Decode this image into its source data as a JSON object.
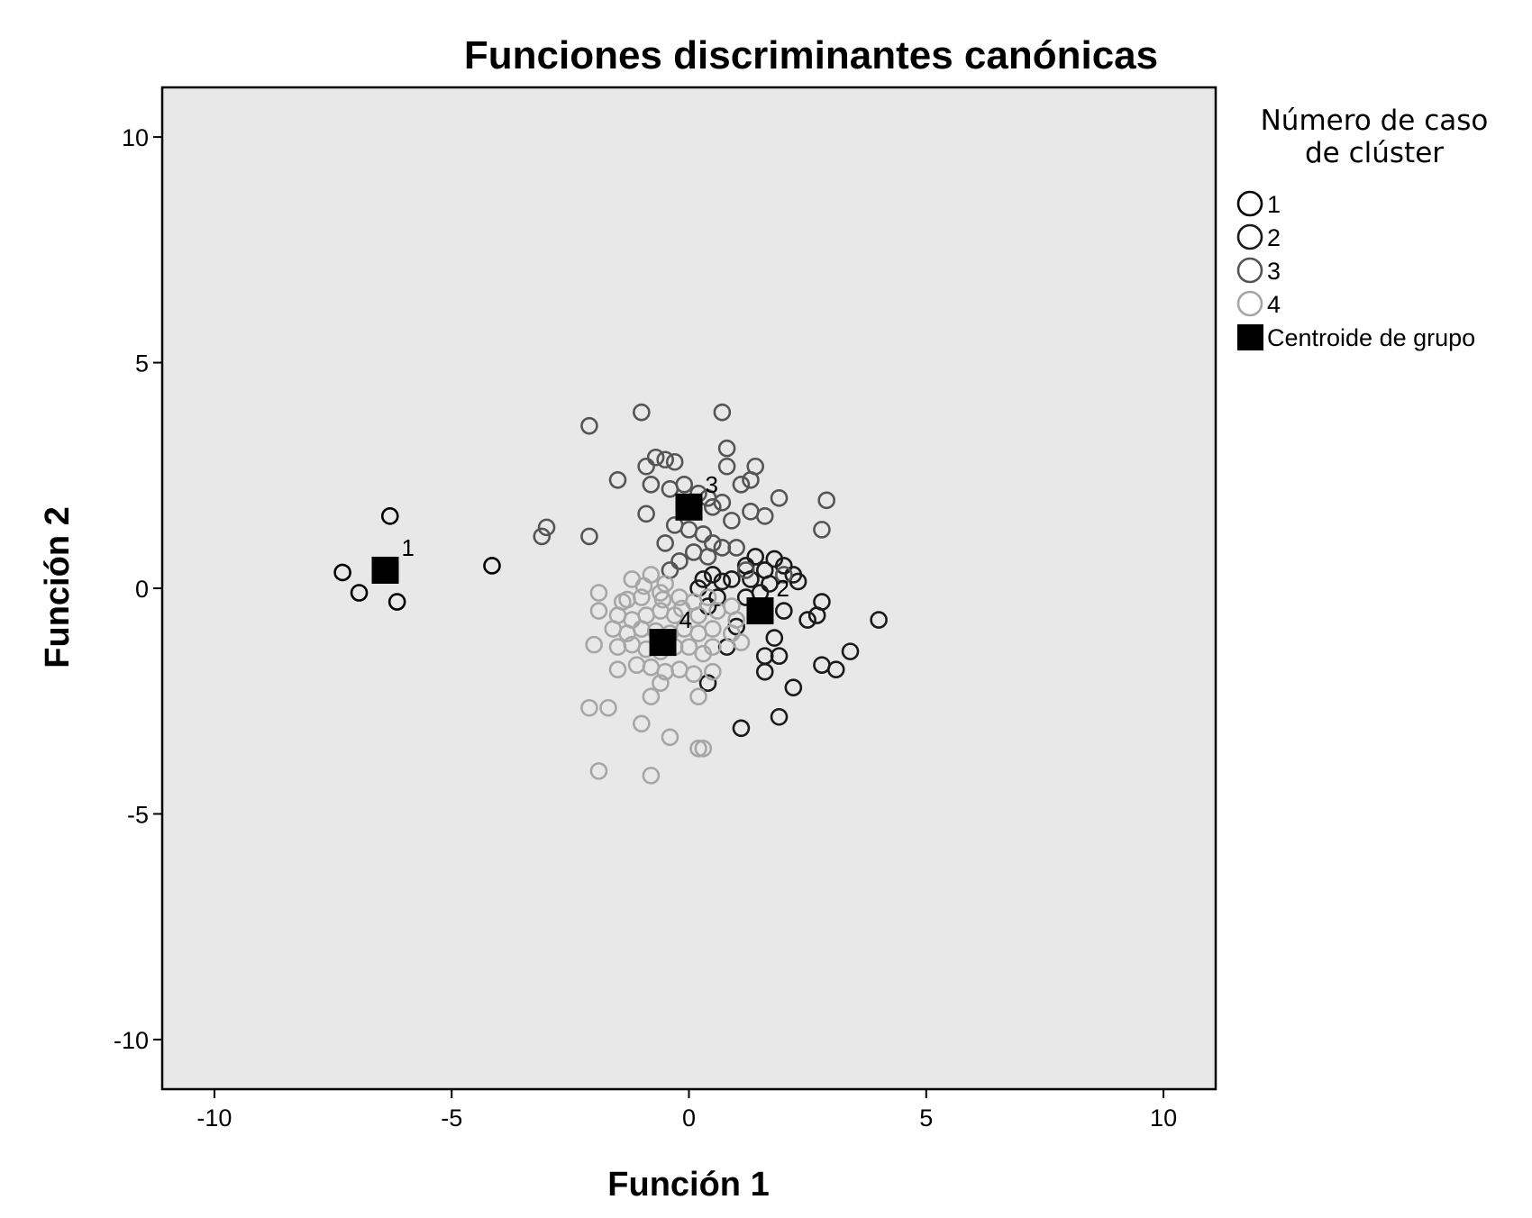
{
  "chart_data": {
    "type": "scatter",
    "title": "Funciones discriminantes canónicas",
    "xlabel": "Función 1",
    "ylabel": "Función 2",
    "xlim": [
      -11.1,
      11.1
    ],
    "ylim": [
      -11.1,
      11.1
    ],
    "x_ticks": [
      -10,
      -5,
      0,
      5,
      10
    ],
    "y_ticks": [
      -10,
      -5,
      0,
      5,
      10
    ],
    "x_tick_labels": [
      "-10",
      "-5",
      "0",
      "5",
      "10"
    ],
    "y_tick_labels": [
      "-10",
      "-5",
      "0",
      "5",
      "10"
    ],
    "grid": false,
    "plot_background": "#e8e8e8",
    "legend": {
      "title_lines": [
        "Número de caso",
        "de clúster"
      ],
      "placement": "right",
      "centroid_label": "Centroide de grupo"
    },
    "series": [
      {
        "name": "1",
        "color": "#000000",
        "points": [
          [
            -6.3,
            1.6
          ],
          [
            -7.3,
            0.35
          ],
          [
            -6.95,
            -0.1
          ],
          [
            -6.15,
            -0.3
          ],
          [
            -4.15,
            0.5
          ]
        ]
      },
      {
        "name": "2",
        "color": "#1a1a1a",
        "points": [
          [
            0.3,
            0.2
          ],
          [
            0.5,
            0.3
          ],
          [
            0.7,
            0.15
          ],
          [
            0.9,
            0.2
          ],
          [
            1.2,
            0.5
          ],
          [
            1.4,
            0.7
          ],
          [
            1.6,
            0.4
          ],
          [
            1.8,
            0.65
          ],
          [
            2.0,
            0.5
          ],
          [
            2.2,
            0.3
          ],
          [
            2.3,
            0.15
          ],
          [
            1.7,
            0.1
          ],
          [
            1.5,
            -0.1
          ],
          [
            0.4,
            -0.4
          ],
          [
            1.2,
            -0.2
          ],
          [
            2.0,
            -0.5
          ],
          [
            2.5,
            -0.7
          ],
          [
            2.7,
            -0.6
          ],
          [
            2.8,
            -0.3
          ],
          [
            4.0,
            -0.7
          ],
          [
            1.0,
            -0.85
          ],
          [
            0.8,
            -1.3
          ],
          [
            1.8,
            -1.1
          ],
          [
            1.6,
            -1.5
          ],
          [
            1.9,
            -1.5
          ],
          [
            3.4,
            -1.4
          ],
          [
            2.8,
            -1.7
          ],
          [
            3.1,
            -1.8
          ],
          [
            1.6,
            -1.85
          ],
          [
            0.4,
            -2.1
          ],
          [
            2.2,
            -2.2
          ],
          [
            1.9,
            -2.85
          ],
          [
            1.1,
            -3.1
          ],
          [
            0.2,
            0.0
          ],
          [
            1.3,
            0.2
          ],
          [
            0.6,
            -0.2
          ]
        ]
      },
      {
        "name": "3",
        "color": "#555555",
        "points": [
          [
            -1.0,
            3.9
          ],
          [
            0.7,
            3.9
          ],
          [
            -2.1,
            3.6
          ],
          [
            0.8,
            3.1
          ],
          [
            -0.7,
            2.9
          ],
          [
            -0.5,
            2.85
          ],
          [
            -0.3,
            2.8
          ],
          [
            1.4,
            2.7
          ],
          [
            -0.9,
            2.7
          ],
          [
            0.8,
            2.7
          ],
          [
            -1.5,
            2.4
          ],
          [
            -0.8,
            2.3
          ],
          [
            -0.4,
            2.2
          ],
          [
            -0.1,
            2.3
          ],
          [
            0.2,
            2.1
          ],
          [
            0.4,
            2.0
          ],
          [
            1.1,
            2.3
          ],
          [
            1.3,
            2.4
          ],
          [
            1.9,
            2.0
          ],
          [
            0.5,
            1.8
          ],
          [
            0.7,
            1.9
          ],
          [
            1.3,
            1.7
          ],
          [
            1.6,
            1.6
          ],
          [
            -0.9,
            1.65
          ],
          [
            -0.3,
            1.4
          ],
          [
            0.0,
            1.3
          ],
          [
            0.3,
            1.2
          ],
          [
            0.5,
            1.0
          ],
          [
            0.7,
            0.9
          ],
          [
            1.0,
            0.9
          ],
          [
            2.9,
            1.95
          ],
          [
            2.8,
            1.3
          ],
          [
            -3.0,
            1.35
          ],
          [
            -3.1,
            1.15
          ],
          [
            -2.1,
            1.15
          ],
          [
            -0.5,
            1.0
          ],
          [
            -0.2,
            0.6
          ],
          [
            0.1,
            0.8
          ],
          [
            0.4,
            0.7
          ],
          [
            1.2,
            0.4
          ],
          [
            2.0,
            0.3
          ],
          [
            -0.4,
            0.4
          ],
          [
            0.1,
            1.9
          ],
          [
            0.9,
            1.5
          ]
        ]
      },
      {
        "name": "4",
        "color": "#a6a6a6",
        "points": [
          [
            -1.2,
            0.2
          ],
          [
            -0.8,
            0.3
          ],
          [
            -0.5,
            0.1
          ],
          [
            -1.9,
            -0.1
          ],
          [
            -1.4,
            -0.3
          ],
          [
            -1.0,
            -0.2
          ],
          [
            -0.6,
            -0.1
          ],
          [
            -0.2,
            -0.2
          ],
          [
            0.1,
            -0.3
          ],
          [
            0.4,
            -0.2
          ],
          [
            0.9,
            -0.4
          ],
          [
            -1.9,
            -0.5
          ],
          [
            -1.5,
            -0.6
          ],
          [
            -1.2,
            -0.7
          ],
          [
            -0.9,
            -0.6
          ],
          [
            -0.6,
            -0.5
          ],
          [
            -0.3,
            -0.6
          ],
          [
            0.2,
            -0.6
          ],
          [
            0.6,
            -0.5
          ],
          [
            1.0,
            -0.7
          ],
          [
            -1.6,
            -0.9
          ],
          [
            -1.3,
            -1.0
          ],
          [
            -1.0,
            -0.9
          ],
          [
            -0.7,
            -0.95
          ],
          [
            -0.4,
            -1.0
          ],
          [
            -0.1,
            -0.9
          ],
          [
            0.2,
            -1.0
          ],
          [
            0.5,
            -0.9
          ],
          [
            0.9,
            -1.0
          ],
          [
            1.1,
            -1.2
          ],
          [
            -2.0,
            -1.25
          ],
          [
            -1.5,
            -1.3
          ],
          [
            -1.2,
            -1.25
          ],
          [
            -0.9,
            -1.35
          ],
          [
            -0.6,
            -1.4
          ],
          [
            -0.3,
            -1.3
          ],
          [
            0.0,
            -1.3
          ],
          [
            0.3,
            -1.45
          ],
          [
            0.5,
            -1.3
          ],
          [
            -1.5,
            -1.8
          ],
          [
            -1.1,
            -1.7
          ],
          [
            -0.8,
            -1.75
          ],
          [
            -0.5,
            -1.85
          ],
          [
            -0.2,
            -1.8
          ],
          [
            0.1,
            -1.9
          ],
          [
            0.5,
            -1.85
          ],
          [
            -0.6,
            -2.1
          ],
          [
            -0.8,
            -2.4
          ],
          [
            0.2,
            -2.4
          ],
          [
            -2.1,
            -2.65
          ],
          [
            -1.7,
            -2.65
          ],
          [
            -1.0,
            -3.0
          ],
          [
            -0.4,
            -3.3
          ],
          [
            0.2,
            -3.55
          ],
          [
            0.3,
            -3.55
          ],
          [
            -1.9,
            -4.05
          ],
          [
            -0.8,
            -4.15
          ],
          [
            -1.3,
            -0.25
          ],
          [
            -0.95,
            0.05
          ],
          [
            -0.55,
            -0.25
          ],
          [
            -0.15,
            -0.45
          ]
        ]
      }
    ],
    "centroids": [
      {
        "label": "1",
        "x": -6.4,
        "y": 0.4
      },
      {
        "label": "2",
        "x": 1.5,
        "y": -0.5
      },
      {
        "label": "3",
        "x": 0.0,
        "y": 1.8
      },
      {
        "label": "4",
        "x": -0.55,
        "y": -1.2
      }
    ]
  }
}
